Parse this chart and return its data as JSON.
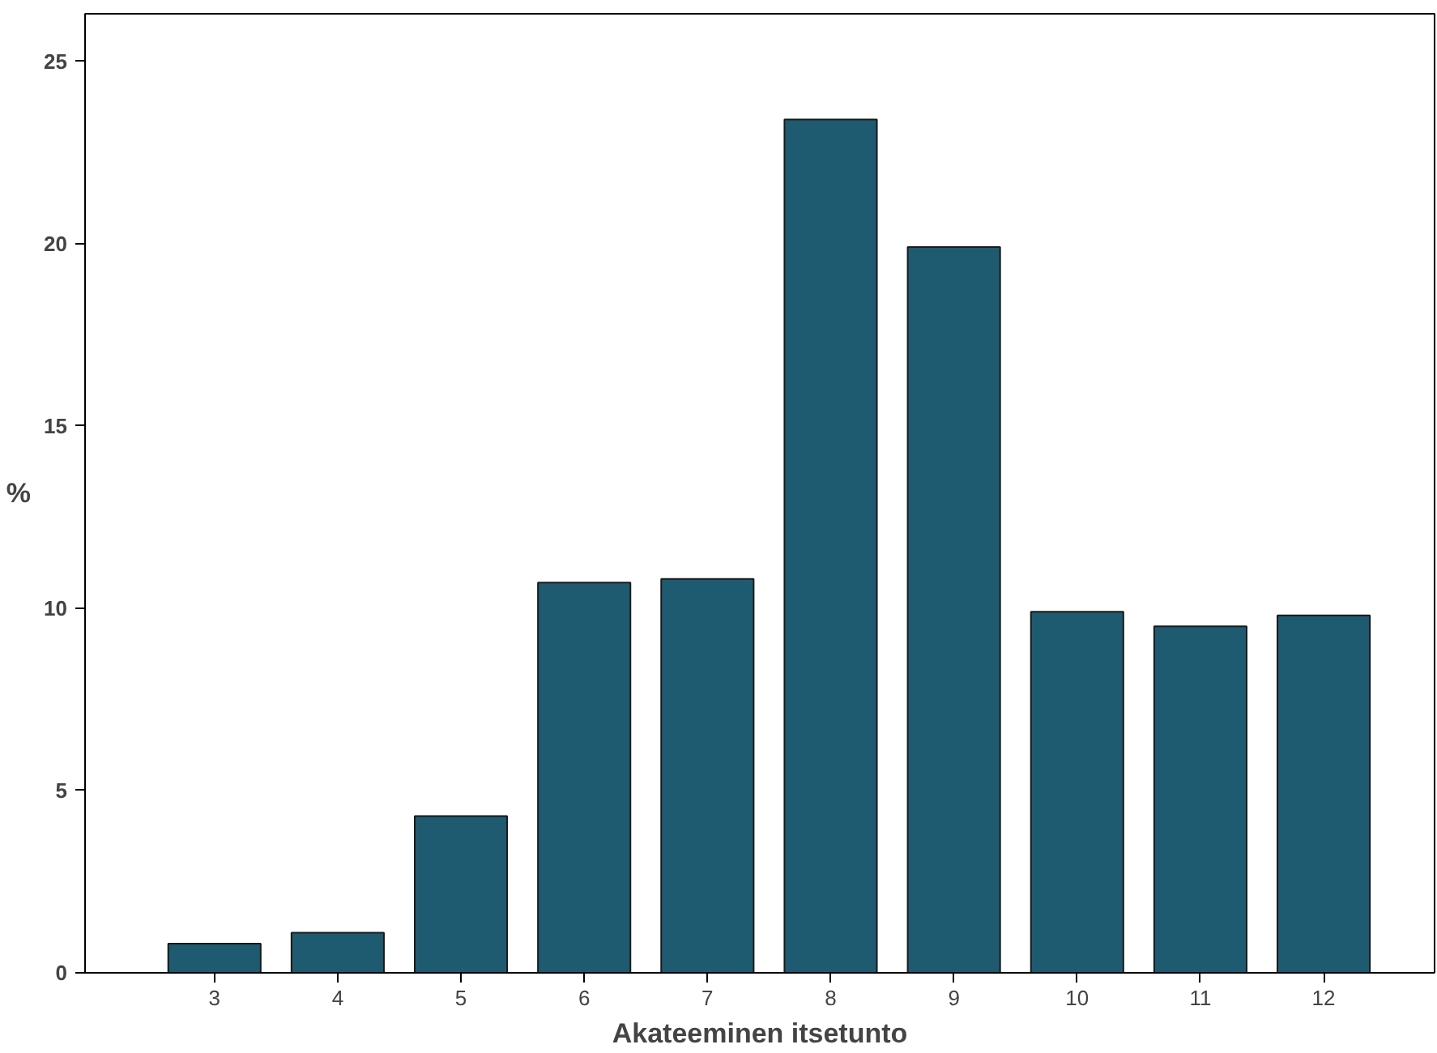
{
  "chart_data": {
    "type": "bar",
    "xlabel": "Akateeminen itsetunto",
    "ylabel": "%",
    "categories": [
      "3",
      "4",
      "5",
      "6",
      "7",
      "8",
      "9",
      "10",
      "11",
      "12"
    ],
    "values": [
      0.8,
      1.1,
      4.3,
      10.7,
      10.8,
      23.4,
      19.9,
      9.9,
      9.5,
      9.8
    ],
    "color": "#1f5b70",
    "ylim": [
      0,
      26.3
    ],
    "yticks": [
      0,
      5,
      10,
      15,
      20,
      25
    ],
    "grid": false
  }
}
